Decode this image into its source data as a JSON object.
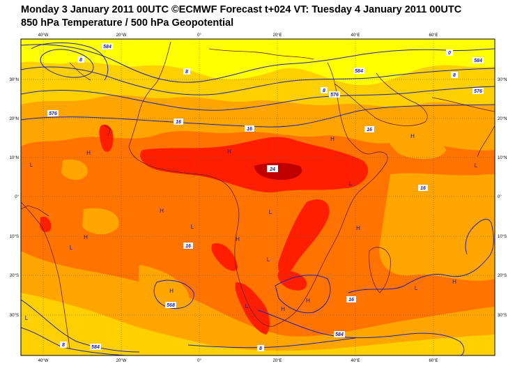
{
  "header": {
    "line1": "Monday 3 January 2011 00UTC ©ECMWF Forecast t+024 VT: Tuesday 4 January 2011 00UTC",
    "line2": "850 hPa Temperature / 500 hPa Geopotential"
  },
  "axes": {
    "lon_labels": [
      "40°W",
      "20°W",
      "0°",
      "20°E",
      "40°E",
      "60°E"
    ],
    "lat_labels_left": [
      "30°N",
      "20°N",
      "10°N",
      "0°",
      "10°S",
      "20°S",
      "30°S"
    ],
    "lat_labels_right": [
      "30°N",
      "20°N",
      "10°N",
      "0°",
      "10°S",
      "20°S",
      "30°S"
    ]
  },
  "contour_labels": [
    "8",
    "584",
    "576",
    "8",
    "8",
    "584",
    "576",
    "0",
    "8",
    "584",
    "576",
    "16",
    "16",
    "16",
    "24",
    "16",
    "16",
    "8",
    "568",
    "584",
    "8",
    "584",
    "16"
  ],
  "pressure_centers": [
    "H",
    "L",
    "H",
    "H",
    "L",
    "H",
    "L",
    "H",
    "H",
    "H",
    "L",
    "L",
    "L",
    "H",
    "H",
    "H",
    "H",
    "L",
    "H",
    "L",
    "L",
    "L"
  ],
  "colors": {
    "temp_0_8": "#ffff00",
    "temp_8_16": "#ffd000",
    "temp_16_20": "#ffa500",
    "temp_20_24": "#ff7300",
    "temp_24_28": "#ff1e00",
    "temp_28_plus": "#c00000",
    "geopotential_contour": "#2222aa",
    "coastline": "#6b1a1a"
  }
}
